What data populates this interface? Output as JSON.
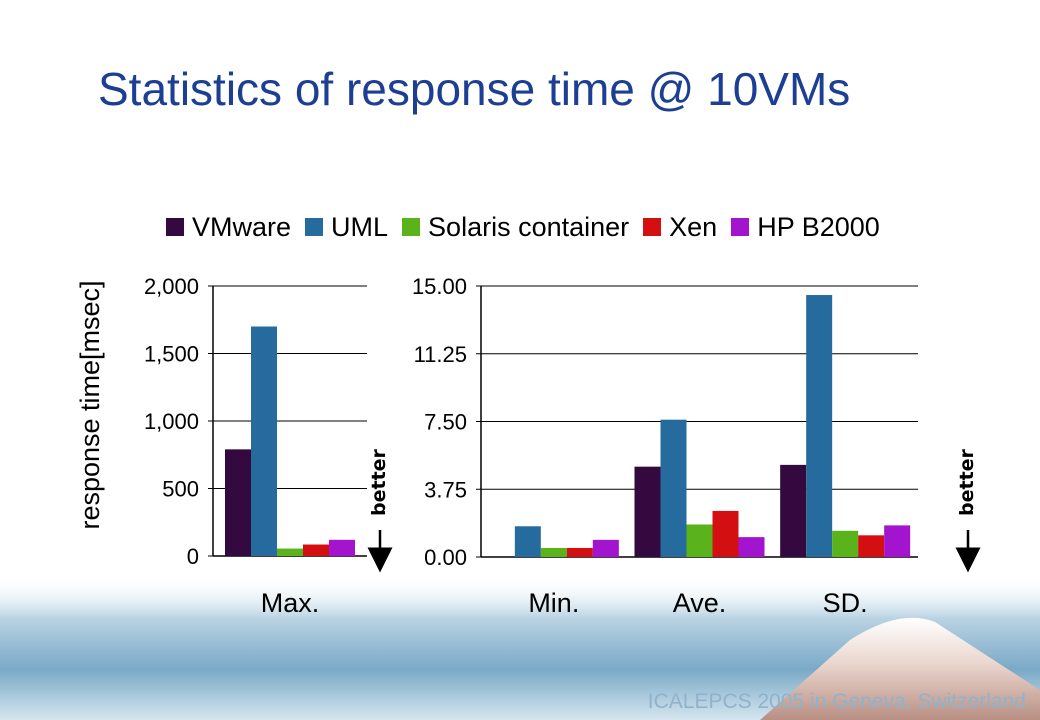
{
  "slide": {
    "title": "Statistics of response time @ 10VMs",
    "footer": "ICALEPCS 2005 in Geneva, Switzerland"
  },
  "colors": {
    "title": "#1c3f94",
    "VMware": "#33093f",
    "UML": "#266b9d",
    "Solaris container": "#5ab31a",
    "Xen": "#d40f12",
    "HP B2000": "#a214cd"
  },
  "legend": [
    "VMware",
    "UML",
    "Solaris container",
    "Xen",
    "HP B2000"
  ],
  "annotations": {
    "better": "better"
  },
  "chart_data": [
    {
      "type": "bar",
      "ylabel": "response time[msec]",
      "ylim": [
        0,
        2000
      ],
      "yticks": [
        "0",
        "500",
        "1,000",
        "1,500",
        "2,000"
      ],
      "ytick_values": [
        0,
        500,
        1000,
        1500,
        2000
      ],
      "grid": true,
      "categories": [
        "Max."
      ],
      "series": [
        {
          "name": "VMware",
          "values": [
            790
          ]
        },
        {
          "name": "UML",
          "values": [
            1700
          ]
        },
        {
          "name": "Solaris container",
          "values": [
            55
          ]
        },
        {
          "name": "Xen",
          "values": [
            85
          ]
        },
        {
          "name": "HP B2000",
          "values": [
            120
          ]
        }
      ]
    },
    {
      "type": "bar",
      "ylim": [
        0,
        15
      ],
      "yticks": [
        "0.00",
        "3.75",
        "7.50",
        "11.25",
        "15.00"
      ],
      "ytick_values": [
        0,
        3.75,
        7.5,
        11.25,
        15
      ],
      "grid": true,
      "categories": [
        "Min.",
        "Ave.",
        "SD."
      ],
      "series": [
        {
          "name": "VMware",
          "values": [
            0,
            5.0,
            5.1
          ]
        },
        {
          "name": "UML",
          "values": [
            1.7,
            7.6,
            14.5
          ]
        },
        {
          "name": "Solaris container",
          "values": [
            0.5,
            1.8,
            1.45
          ]
        },
        {
          "name": "Xen",
          "values": [
            0.5,
            2.55,
            1.2
          ]
        },
        {
          "name": "HP B2000",
          "values": [
            0.95,
            1.1,
            1.75
          ]
        }
      ]
    }
  ]
}
